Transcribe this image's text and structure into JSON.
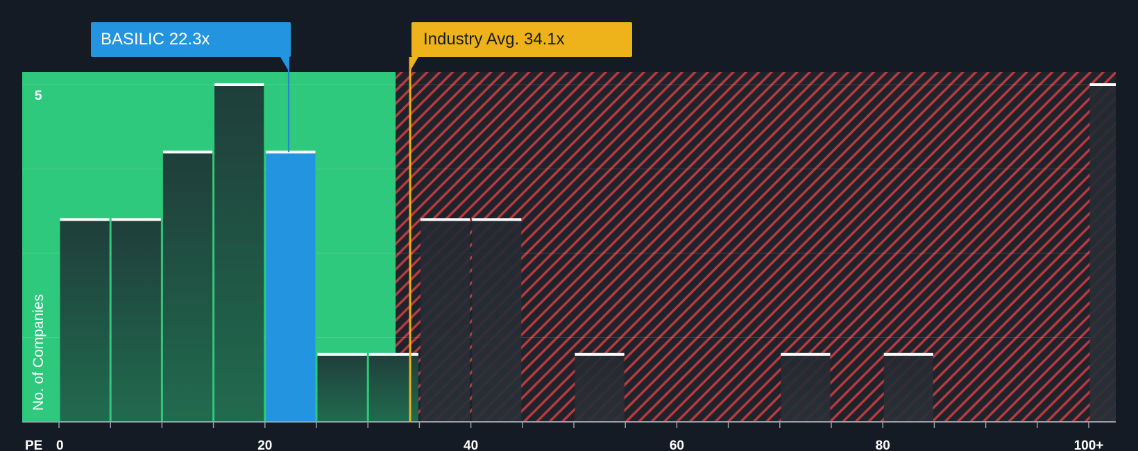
{
  "chart_data": {
    "type": "bar",
    "title": "",
    "xlabel": "PE",
    "ylabel": "No. of Companies",
    "x_ticks": [
      "0",
      "20",
      "40",
      "60",
      "80",
      "100+"
    ],
    "x_tick_values": [
      0,
      20,
      40,
      60,
      80,
      100
    ],
    "xlim": [
      0,
      102.5
    ],
    "y_ticks": [
      "5"
    ],
    "y_tick_values": [
      5
    ],
    "ylim": [
      0,
      5.15
    ],
    "bin_width": 5,
    "bins": [
      {
        "start": 0,
        "count": 3
      },
      {
        "start": 5,
        "count": 3
      },
      {
        "start": 10,
        "count": 4
      },
      {
        "start": 15,
        "count": 5
      },
      {
        "start": 20,
        "count": 4,
        "highlight": true
      },
      {
        "start": 25,
        "count": 1
      },
      {
        "start": 30,
        "count": 1
      },
      {
        "start": 35,
        "count": 3
      },
      {
        "start": 40,
        "count": 3
      },
      {
        "start": 50,
        "count": 1
      },
      {
        "start": 70,
        "count": 1
      },
      {
        "start": 80,
        "count": 1
      },
      {
        "start": 100,
        "count": 5
      }
    ],
    "company": {
      "label": "BASILIC 22.3x",
      "value": 22.3
    },
    "industry": {
      "label": "Industry Avg. 34.1x",
      "value": 34.1
    },
    "fair_zone_end": 32.7
  },
  "colors": {
    "background": "#151b24",
    "green_zone": "#2ec97c",
    "bar_in_zone": "#1d4d3e",
    "bar_in_red": "#222a33",
    "highlight": "#2394e0",
    "industry": "#eeb21a",
    "hatch": "#c0393f",
    "bar_cap": "#ffffff"
  }
}
